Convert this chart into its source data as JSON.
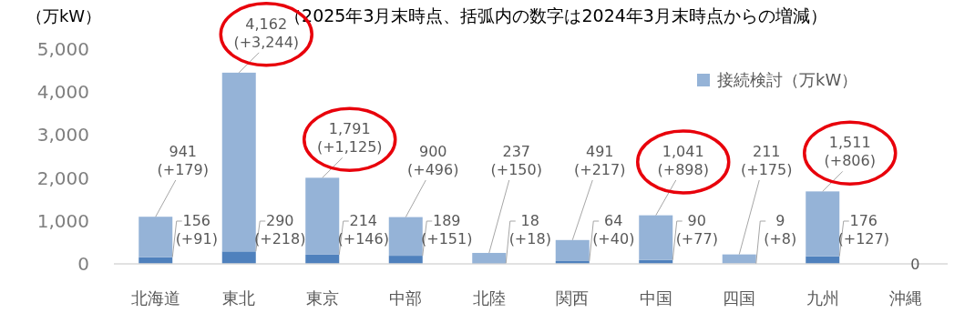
{
  "chart_data": {
    "type": "bar",
    "title": "（2025年3月末時点、括弧内の数字は2024年3月末時点からの増減）",
    "ylabel": "（万kW）",
    "categories": [
      "北海道",
      "東北",
      "東京",
      "中部",
      "北陸",
      "関西",
      "中国",
      "四国",
      "九州",
      "沖縄"
    ],
    "stacked": true,
    "legend": "top right",
    "grid": false,
    "ylim": [
      0,
      5000
    ],
    "yticks": [
      0,
      {
        "value": 1000,
        "label": "1,000"
      },
      {
        "value": 2000,
        "label": "2,000"
      },
      {
        "value": 3000,
        "label": "3,000"
      },
      {
        "value": 4000,
        "label": "4,000"
      },
      {
        "value": 5000,
        "label": "5,000"
      }
    ],
    "series": [
      {
        "color": "#4f81bd",
        "values": [
          156,
          290,
          214,
          189,
          18,
          64,
          90,
          9,
          176,
          0
        ],
        "value_labels": [
          "156\n(+91)",
          "290\n(+218)",
          "214\n(+146)",
          "189\n(+151)",
          "18\n(+18)",
          "64\n(+40)",
          "90\n(+77)",
          "9\n(+8)",
          "176\n(+127)",
          null
        ]
      },
      {
        "name": "接続検討（万kW）",
        "color": "#95b3d7",
        "values": [
          941,
          4162,
          1791,
          900,
          237,
          491,
          1041,
          211,
          1511,
          0
        ],
        "value_labels": [
          "941\n(+179)",
          "4,162\n(+3,244)",
          "1,791\n(+1,125)",
          "900\n(+496)",
          "237\n(+150)",
          "491\n(+217)",
          "1,041\n(+898)",
          "211\n(+175)",
          "1,511\n(+806)",
          "0"
        ]
      }
    ]
  }
}
